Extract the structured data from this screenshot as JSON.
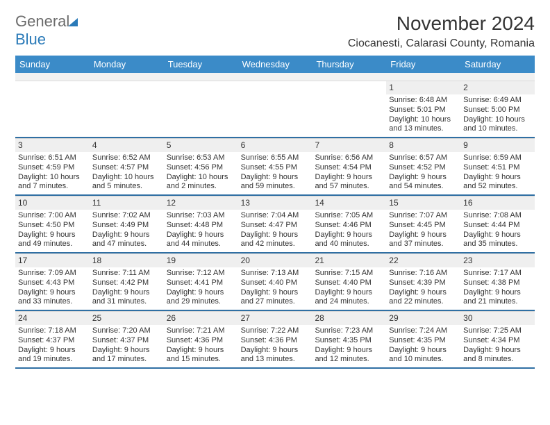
{
  "logo": {
    "word1": "General",
    "word2": "Blue"
  },
  "title": "November 2024",
  "location": "Ciocanesti, Calarasi County, Romania",
  "colors": {
    "header_bg": "#3b8bc8",
    "header_text": "#ffffff",
    "cell_divider": "#2f6fa3",
    "daynum_bg": "#efefef",
    "body_text": "#323232",
    "logo_gray": "#6b6b6b",
    "logo_blue": "#2a7ab8",
    "page_bg": "#ffffff"
  },
  "typography": {
    "title_fontsize": 28,
    "location_fontsize": 16,
    "dayheader_fontsize": 13,
    "daynum_fontsize": 12,
    "body_fontsize": 11
  },
  "day_names": [
    "Sunday",
    "Monday",
    "Tuesday",
    "Wednesday",
    "Thursday",
    "Friday",
    "Saturday"
  ],
  "weeks": [
    [
      null,
      null,
      null,
      null,
      null,
      {
        "n": "1",
        "sr": "Sunrise: 6:48 AM",
        "ss": "Sunset: 5:01 PM",
        "dl": "Daylight: 10 hours and 13 minutes."
      },
      {
        "n": "2",
        "sr": "Sunrise: 6:49 AM",
        "ss": "Sunset: 5:00 PM",
        "dl": "Daylight: 10 hours and 10 minutes."
      }
    ],
    [
      {
        "n": "3",
        "sr": "Sunrise: 6:51 AM",
        "ss": "Sunset: 4:59 PM",
        "dl": "Daylight: 10 hours and 7 minutes."
      },
      {
        "n": "4",
        "sr": "Sunrise: 6:52 AM",
        "ss": "Sunset: 4:57 PM",
        "dl": "Daylight: 10 hours and 5 minutes."
      },
      {
        "n": "5",
        "sr": "Sunrise: 6:53 AM",
        "ss": "Sunset: 4:56 PM",
        "dl": "Daylight: 10 hours and 2 minutes."
      },
      {
        "n": "6",
        "sr": "Sunrise: 6:55 AM",
        "ss": "Sunset: 4:55 PM",
        "dl": "Daylight: 9 hours and 59 minutes."
      },
      {
        "n": "7",
        "sr": "Sunrise: 6:56 AM",
        "ss": "Sunset: 4:54 PM",
        "dl": "Daylight: 9 hours and 57 minutes."
      },
      {
        "n": "8",
        "sr": "Sunrise: 6:57 AM",
        "ss": "Sunset: 4:52 PM",
        "dl": "Daylight: 9 hours and 54 minutes."
      },
      {
        "n": "9",
        "sr": "Sunrise: 6:59 AM",
        "ss": "Sunset: 4:51 PM",
        "dl": "Daylight: 9 hours and 52 minutes."
      }
    ],
    [
      {
        "n": "10",
        "sr": "Sunrise: 7:00 AM",
        "ss": "Sunset: 4:50 PM",
        "dl": "Daylight: 9 hours and 49 minutes."
      },
      {
        "n": "11",
        "sr": "Sunrise: 7:02 AM",
        "ss": "Sunset: 4:49 PM",
        "dl": "Daylight: 9 hours and 47 minutes."
      },
      {
        "n": "12",
        "sr": "Sunrise: 7:03 AM",
        "ss": "Sunset: 4:48 PM",
        "dl": "Daylight: 9 hours and 44 minutes."
      },
      {
        "n": "13",
        "sr": "Sunrise: 7:04 AM",
        "ss": "Sunset: 4:47 PM",
        "dl": "Daylight: 9 hours and 42 minutes."
      },
      {
        "n": "14",
        "sr": "Sunrise: 7:05 AM",
        "ss": "Sunset: 4:46 PM",
        "dl": "Daylight: 9 hours and 40 minutes."
      },
      {
        "n": "15",
        "sr": "Sunrise: 7:07 AM",
        "ss": "Sunset: 4:45 PM",
        "dl": "Daylight: 9 hours and 37 minutes."
      },
      {
        "n": "16",
        "sr": "Sunrise: 7:08 AM",
        "ss": "Sunset: 4:44 PM",
        "dl": "Daylight: 9 hours and 35 minutes."
      }
    ],
    [
      {
        "n": "17",
        "sr": "Sunrise: 7:09 AM",
        "ss": "Sunset: 4:43 PM",
        "dl": "Daylight: 9 hours and 33 minutes."
      },
      {
        "n": "18",
        "sr": "Sunrise: 7:11 AM",
        "ss": "Sunset: 4:42 PM",
        "dl": "Daylight: 9 hours and 31 minutes."
      },
      {
        "n": "19",
        "sr": "Sunrise: 7:12 AM",
        "ss": "Sunset: 4:41 PM",
        "dl": "Daylight: 9 hours and 29 minutes."
      },
      {
        "n": "20",
        "sr": "Sunrise: 7:13 AM",
        "ss": "Sunset: 4:40 PM",
        "dl": "Daylight: 9 hours and 27 minutes."
      },
      {
        "n": "21",
        "sr": "Sunrise: 7:15 AM",
        "ss": "Sunset: 4:40 PM",
        "dl": "Daylight: 9 hours and 24 minutes."
      },
      {
        "n": "22",
        "sr": "Sunrise: 7:16 AM",
        "ss": "Sunset: 4:39 PM",
        "dl": "Daylight: 9 hours and 22 minutes."
      },
      {
        "n": "23",
        "sr": "Sunrise: 7:17 AM",
        "ss": "Sunset: 4:38 PM",
        "dl": "Daylight: 9 hours and 21 minutes."
      }
    ],
    [
      {
        "n": "24",
        "sr": "Sunrise: 7:18 AM",
        "ss": "Sunset: 4:37 PM",
        "dl": "Daylight: 9 hours and 19 minutes."
      },
      {
        "n": "25",
        "sr": "Sunrise: 7:20 AM",
        "ss": "Sunset: 4:37 PM",
        "dl": "Daylight: 9 hours and 17 minutes."
      },
      {
        "n": "26",
        "sr": "Sunrise: 7:21 AM",
        "ss": "Sunset: 4:36 PM",
        "dl": "Daylight: 9 hours and 15 minutes."
      },
      {
        "n": "27",
        "sr": "Sunrise: 7:22 AM",
        "ss": "Sunset: 4:36 PM",
        "dl": "Daylight: 9 hours and 13 minutes."
      },
      {
        "n": "28",
        "sr": "Sunrise: 7:23 AM",
        "ss": "Sunset: 4:35 PM",
        "dl": "Daylight: 9 hours and 12 minutes."
      },
      {
        "n": "29",
        "sr": "Sunrise: 7:24 AM",
        "ss": "Sunset: 4:35 PM",
        "dl": "Daylight: 9 hours and 10 minutes."
      },
      {
        "n": "30",
        "sr": "Sunrise: 7:25 AM",
        "ss": "Sunset: 4:34 PM",
        "dl": "Daylight: 9 hours and 8 minutes."
      }
    ]
  ]
}
